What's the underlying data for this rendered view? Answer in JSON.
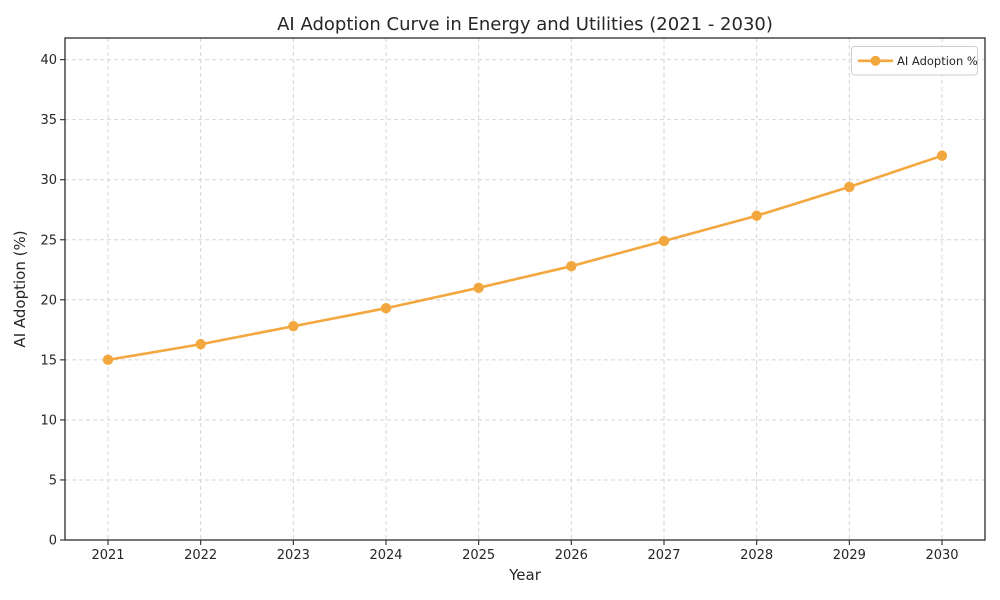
{
  "chart_data": {
    "type": "line",
    "title": "AI Adoption Curve in Energy and Utilities (2021 - 2030)",
    "xlabel": "Year",
    "ylabel": "AI Adoption (%)",
    "categories": [
      "2021",
      "2022",
      "2023",
      "2024",
      "2025",
      "2026",
      "2027",
      "2028",
      "2029",
      "2030"
    ],
    "series": [
      {
        "name": "AI Adoption %",
        "values": [
          15.0,
          16.3,
          17.8,
          19.3,
          21.0,
          22.8,
          24.9,
          27.0,
          29.4,
          32.0
        ],
        "color": "#F3A73F",
        "marker": "circle"
      }
    ],
    "ylim": [
      0,
      41.8
    ],
    "yticks": [
      0,
      5,
      10,
      15,
      20,
      25,
      30,
      35,
      40
    ],
    "grid": true,
    "grid_style": "dashed",
    "legend": {
      "position": "upper right",
      "entries": [
        "AI Adoption %"
      ]
    }
  },
  "colors": {
    "accent": "#F3A73F",
    "grid": "#d6d6d6",
    "spine": "#2b2b2b",
    "text": "#262626",
    "background": "#ffffff",
    "legend_border": "#cfcfcf"
  }
}
